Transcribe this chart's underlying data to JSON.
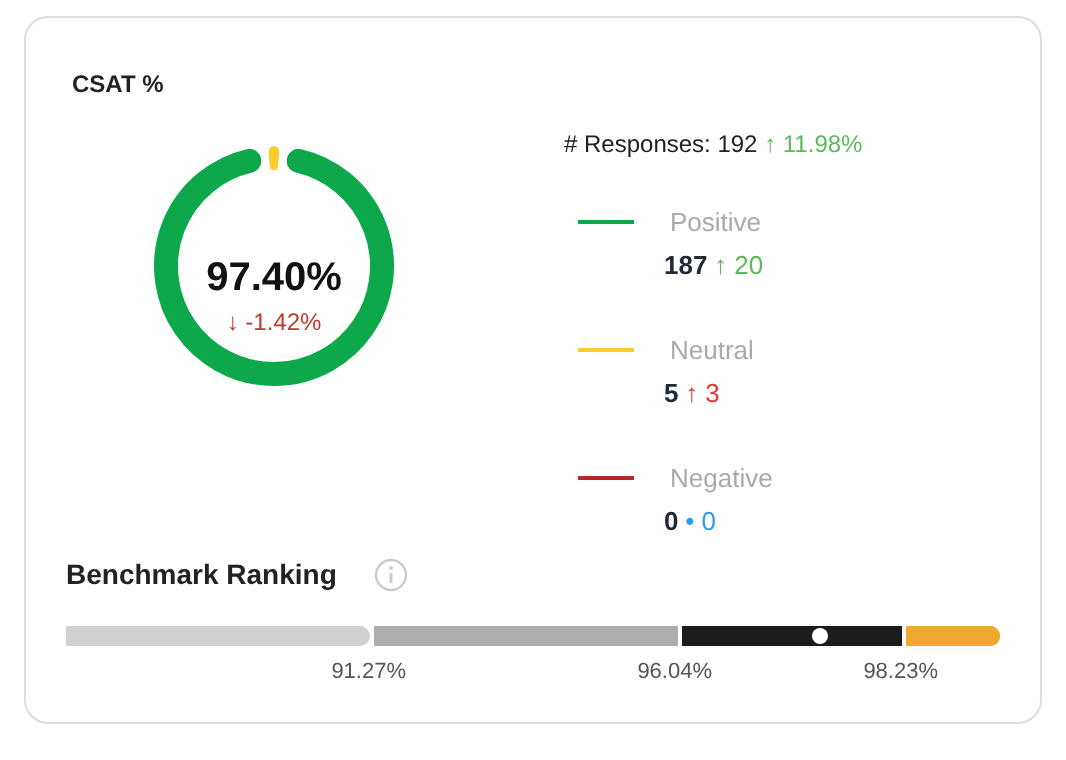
{
  "chart_data": {
    "type": "donut",
    "title": "CSAT %",
    "categories": [
      "Positive",
      "Neutral",
      "Negative"
    ],
    "values": [
      187,
      5,
      0
    ],
    "colors": [
      "#0ca84a",
      "#fccc2c",
      "#b82828"
    ],
    "value_labels": [
      "187",
      "5",
      "0"
    ],
    "legend": "right",
    "annotations": [
      "97.40%",
      "↓ -1.42%",
      "# Responses: 192",
      "↑ 11.98%",
      "↑ 20",
      "↑ 3",
      "• 0",
      "Benchmark Ranking",
      "91.27%",
      "96.04%",
      "98.23%"
    ]
  }
}
